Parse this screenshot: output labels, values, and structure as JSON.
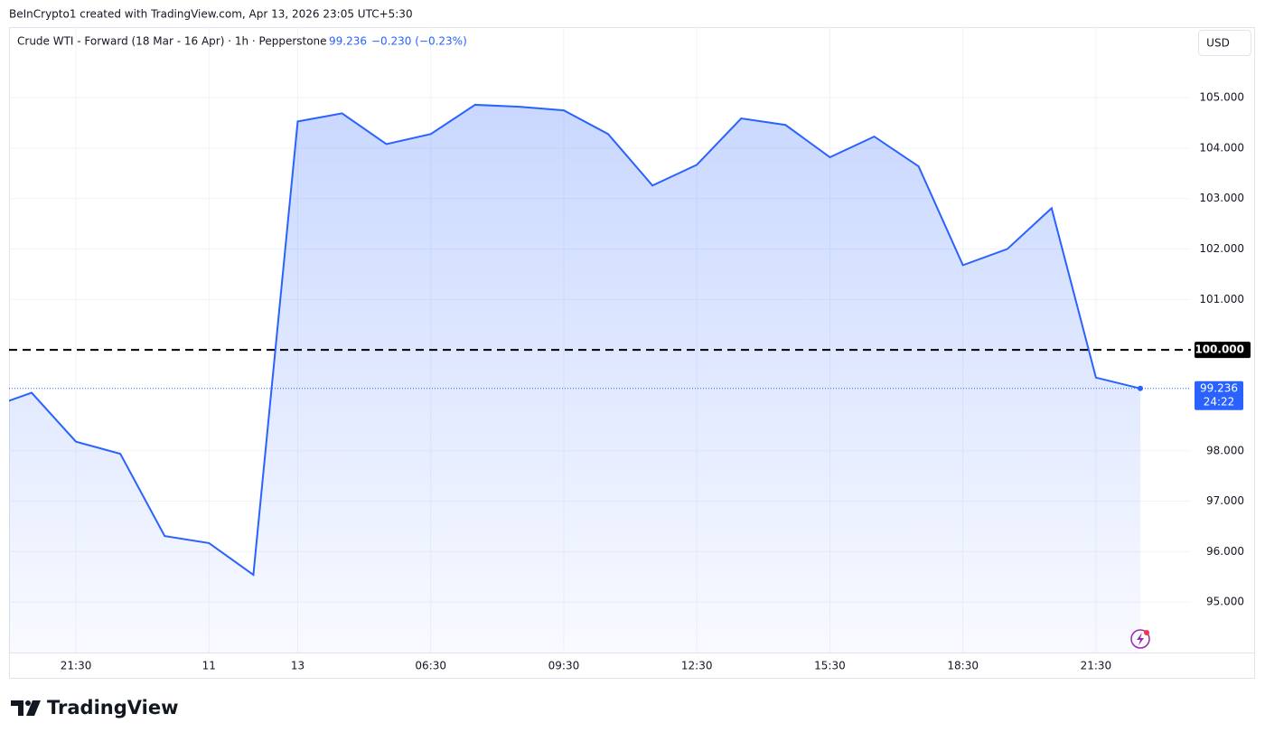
{
  "header": {
    "attribution": "BeInCrypto1 created with TradingView.com, Apr 13, 2026 23:05 UTC+5:30"
  },
  "chart_data": {
    "type": "line",
    "symbol": "Crude WTI - Forward (18 Mar - 16 Apr) · 1h · Pepperstone",
    "change": "−0.230 (−0.23%)",
    "currency": "USD",
    "countdown": "24:22",
    "categories": [
      null,
      null,
      "21:30",
      null,
      null,
      "11",
      null,
      "13",
      null,
      null,
      "06:30",
      null,
      null,
      "09:30",
      null,
      null,
      "12:30",
      null,
      null,
      "15:30",
      null,
      null,
      "18:30",
      null,
      null,
      "21:30",
      null
    ],
    "values": [
      98.84,
      99.15,
      98.18,
      97.94,
      96.31,
      96.17,
      95.54,
      104.53,
      104.69,
      104.08,
      104.28,
      104.86,
      104.82,
      104.75,
      104.28,
      103.26,
      103.67,
      104.59,
      104.46,
      103.82,
      104.23,
      103.64,
      101.68,
      102.0,
      102.81,
      99.45,
      99.236
    ],
    "color": "#2962ff",
    "ylim": [
      94,
      106.4
    ],
    "yticks": [
      {
        "value": 95,
        "label": "95.000"
      },
      {
        "value": 96,
        "label": "96.000"
      },
      {
        "value": 97,
        "label": "97.000"
      },
      {
        "value": 98,
        "label": "98.000"
      },
      {
        "value": 101,
        "label": "101.000"
      },
      {
        "value": 102,
        "label": "102.000"
      },
      {
        "value": 103,
        "label": "103.000"
      },
      {
        "value": 104,
        "label": "104.000"
      },
      {
        "value": 105,
        "label": "105.000"
      }
    ],
    "grid": true,
    "hline": {
      "value": 100,
      "label": "100.000",
      "color": "#000000"
    }
  },
  "footer": {
    "brand": "TradingView"
  }
}
